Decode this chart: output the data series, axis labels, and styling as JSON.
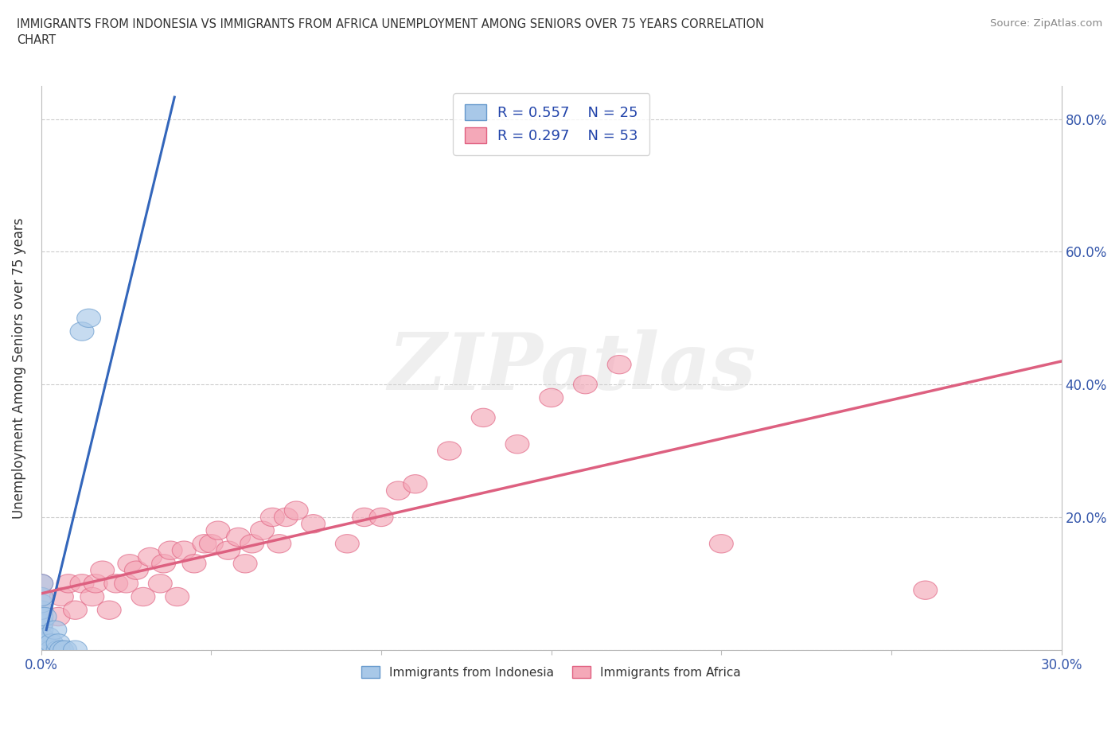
{
  "title": "IMMIGRANTS FROM INDONESIA VS IMMIGRANTS FROM AFRICA UNEMPLOYMENT AMONG SENIORS OVER 75 YEARS CORRELATION\nCHART",
  "source": "Source: ZipAtlas.com",
  "ylabel": "Unemployment Among Seniors over 75 years",
  "xlim": [
    0.0,
    0.3
  ],
  "ylim": [
    0.0,
    0.85
  ],
  "yticks_left": [
    0.0,
    0.2,
    0.4,
    0.6,
    0.8
  ],
  "yticklabels_left": [
    "",
    "",
    "",
    "",
    ""
  ],
  "yticks_right": [
    0.0,
    0.2,
    0.4,
    0.6,
    0.8
  ],
  "yticklabels_right": [
    "",
    "20.0%",
    "40.0%",
    "60.0%",
    "80.0%"
  ],
  "xticks": [
    0.0,
    0.05,
    0.1,
    0.15,
    0.2,
    0.25,
    0.3
  ],
  "xticklabels": [
    "0.0%",
    "",
    "",
    "",
    "",
    "",
    "30.0%"
  ],
  "r_indonesia": 0.557,
  "n_indonesia": 25,
  "r_africa": 0.297,
  "n_africa": 53,
  "color_indonesia": "#a8c8e8",
  "color_africa": "#f4a8b8",
  "edge_indonesia": "#6699cc",
  "edge_africa": "#e06080",
  "trendline_indonesia": "#3366bb",
  "trendline_africa": "#dd6080",
  "watermark": "ZIPatlas",
  "indonesia_x": [
    0.0,
    0.0,
    0.0,
    0.0,
    0.0,
    0.0,
    0.0,
    0.0,
    0.0,
    0.0,
    0.001,
    0.001,
    0.001,
    0.002,
    0.002,
    0.003,
    0.003,
    0.004,
    0.005,
    0.005,
    0.006,
    0.007,
    0.01,
    0.012,
    0.014
  ],
  "indonesia_y": [
    0.0,
    0.01,
    0.02,
    0.03,
    0.04,
    0.05,
    0.06,
    0.07,
    0.08,
    0.1,
    0.0,
    0.01,
    0.05,
    0.0,
    0.02,
    0.0,
    0.01,
    0.03,
    0.0,
    0.01,
    0.0,
    0.0,
    0.0,
    0.48,
    0.5
  ],
  "africa_x": [
    0.0,
    0.0,
    0.0,
    0.0,
    0.0,
    0.0,
    0.005,
    0.006,
    0.008,
    0.01,
    0.012,
    0.015,
    0.016,
    0.018,
    0.02,
    0.022,
    0.025,
    0.026,
    0.028,
    0.03,
    0.032,
    0.035,
    0.036,
    0.038,
    0.04,
    0.042,
    0.045,
    0.048,
    0.05,
    0.052,
    0.055,
    0.058,
    0.06,
    0.062,
    0.065,
    0.068,
    0.07,
    0.072,
    0.075,
    0.08,
    0.09,
    0.095,
    0.1,
    0.105,
    0.11,
    0.12,
    0.13,
    0.14,
    0.15,
    0.16,
    0.17,
    0.2,
    0.26
  ],
  "africa_y": [
    0.0,
    0.02,
    0.04,
    0.06,
    0.08,
    0.1,
    0.05,
    0.08,
    0.1,
    0.06,
    0.1,
    0.08,
    0.1,
    0.12,
    0.06,
    0.1,
    0.1,
    0.13,
    0.12,
    0.08,
    0.14,
    0.1,
    0.13,
    0.15,
    0.08,
    0.15,
    0.13,
    0.16,
    0.16,
    0.18,
    0.15,
    0.17,
    0.13,
    0.16,
    0.18,
    0.2,
    0.16,
    0.2,
    0.21,
    0.19,
    0.16,
    0.2,
    0.2,
    0.24,
    0.25,
    0.3,
    0.35,
    0.31,
    0.38,
    0.4,
    0.43,
    0.16,
    0.09
  ]
}
